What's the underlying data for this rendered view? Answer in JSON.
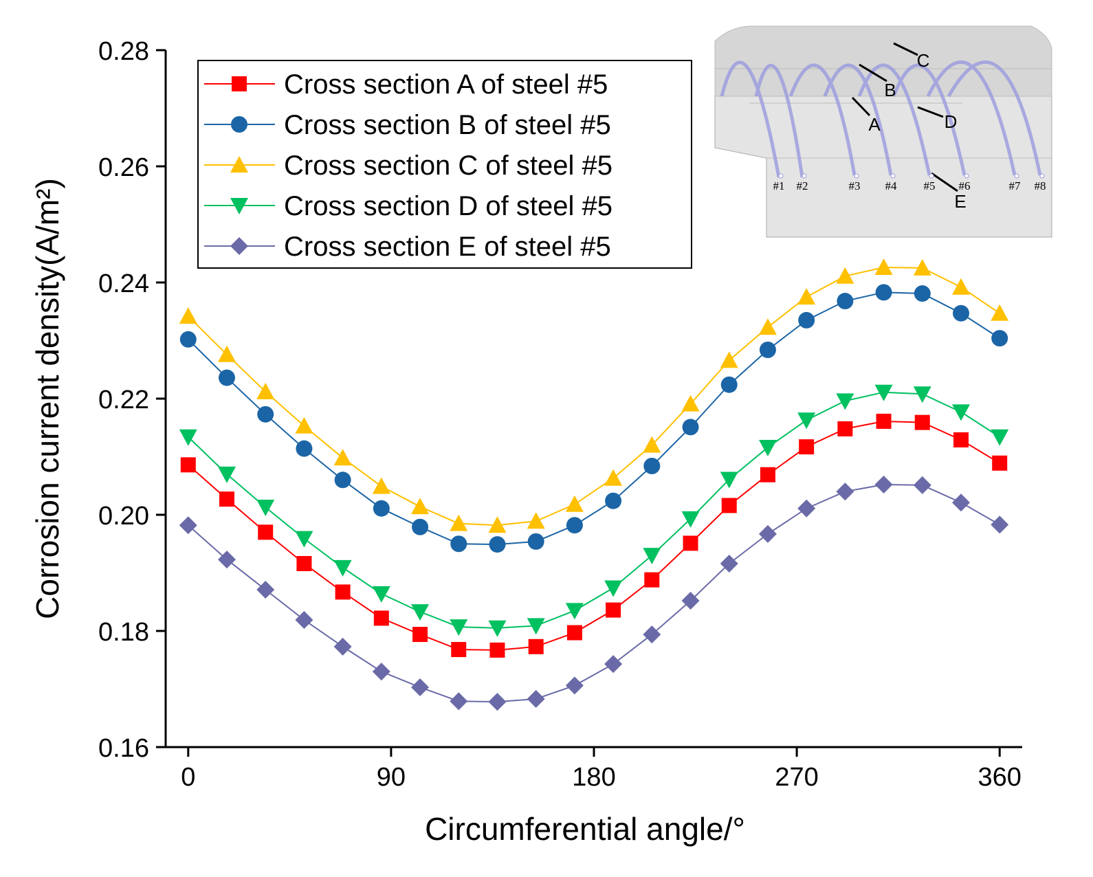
{
  "chart_data": {
    "type": "line",
    "xlabel": "Circumferential angle/°",
    "ylabel": "Corrosion current density(A/m²)",
    "x": [
      0,
      17.14,
      34.29,
      51.43,
      68.57,
      85.71,
      102.86,
      120,
      137.14,
      154.29,
      171.43,
      188.57,
      205.71,
      222.86,
      240,
      257.14,
      274.29,
      291.43,
      308.57,
      325.71,
      342.86,
      360
    ],
    "xlim": [
      -10,
      370
    ],
    "xticks": [
      0,
      90,
      180,
      270,
      360
    ],
    "ylim": [
      0.16,
      0.28
    ],
    "yticks": [
      0.16,
      0.18,
      {
        "value": 0.2,
        "label": "0.20"
      },
      0.22,
      0.24,
      0.26,
      0.28
    ],
    "legend": "upper left",
    "series": [
      {
        "name": "Cross section A of steel #5",
        "color": "#ff0000",
        "marker": "square",
        "values": [
          0.2086,
          0.2027,
          0.197,
          0.1916,
          0.1867,
          0.1822,
          0.1794,
          0.1768,
          0.1767,
          0.1773,
          0.1797,
          0.1836,
          0.1888,
          0.1951,
          0.2016,
          0.2069,
          0.2117,
          0.2148,
          0.2161,
          0.2159,
          0.2129,
          0.2089
        ]
      },
      {
        "name": "Cross section B of steel #5",
        "color": "#1b65a6",
        "marker": "circle",
        "values": [
          0.2302,
          0.2236,
          0.2173,
          0.2114,
          0.206,
          0.2011,
          0.1979,
          0.195,
          0.1949,
          0.1954,
          0.1982,
          0.2024,
          0.2084,
          0.2151,
          0.2224,
          0.2284,
          0.2335,
          0.2368,
          0.2383,
          0.2381,
          0.2347,
          0.2304
        ]
      },
      {
        "name": "Cross section C of steel #5",
        "color": "#ffc000",
        "marker": "triangle-up",
        "values": [
          0.2342,
          0.2276,
          0.2212,
          0.2153,
          0.2098,
          0.2049,
          0.2014,
          0.1985,
          0.1982,
          0.1989,
          0.2018,
          0.2063,
          0.212,
          0.2191,
          0.2266,
          0.2323,
          0.2375,
          0.2411,
          0.2426,
          0.2425,
          0.2392,
          0.2347
        ]
      },
      {
        "name": "Cross section D of steel #5",
        "color": "#00c060",
        "marker": "triangle-down",
        "values": [
          0.2134,
          0.207,
          0.2013,
          0.1959,
          0.1909,
          0.1864,
          0.1833,
          0.1807,
          0.1805,
          0.1809,
          0.1835,
          0.1874,
          0.193,
          0.1993,
          0.2061,
          0.2116,
          0.2163,
          0.2196,
          0.2211,
          0.2208,
          0.2177,
          0.2134
        ]
      },
      {
        "name": "Cross section E of steel #5",
        "color": "#6a6aa8",
        "marker": "diamond",
        "values": [
          0.1982,
          0.1923,
          0.1871,
          0.1819,
          0.1773,
          0.173,
          0.1703,
          0.1679,
          0.1678,
          0.1683,
          0.1706,
          0.1743,
          0.1794,
          0.1852,
          0.1916,
          0.1967,
          0.2011,
          0.204,
          0.2052,
          0.2051,
          0.2021,
          0.1983
        ]
      }
    ]
  },
  "inset": {
    "steel_labels": [
      "#1",
      "#2",
      "#3",
      "#4",
      "#5",
      "#6",
      "#7",
      "#8"
    ],
    "section_labels": [
      "A",
      "B",
      "C",
      "D",
      "E"
    ]
  }
}
